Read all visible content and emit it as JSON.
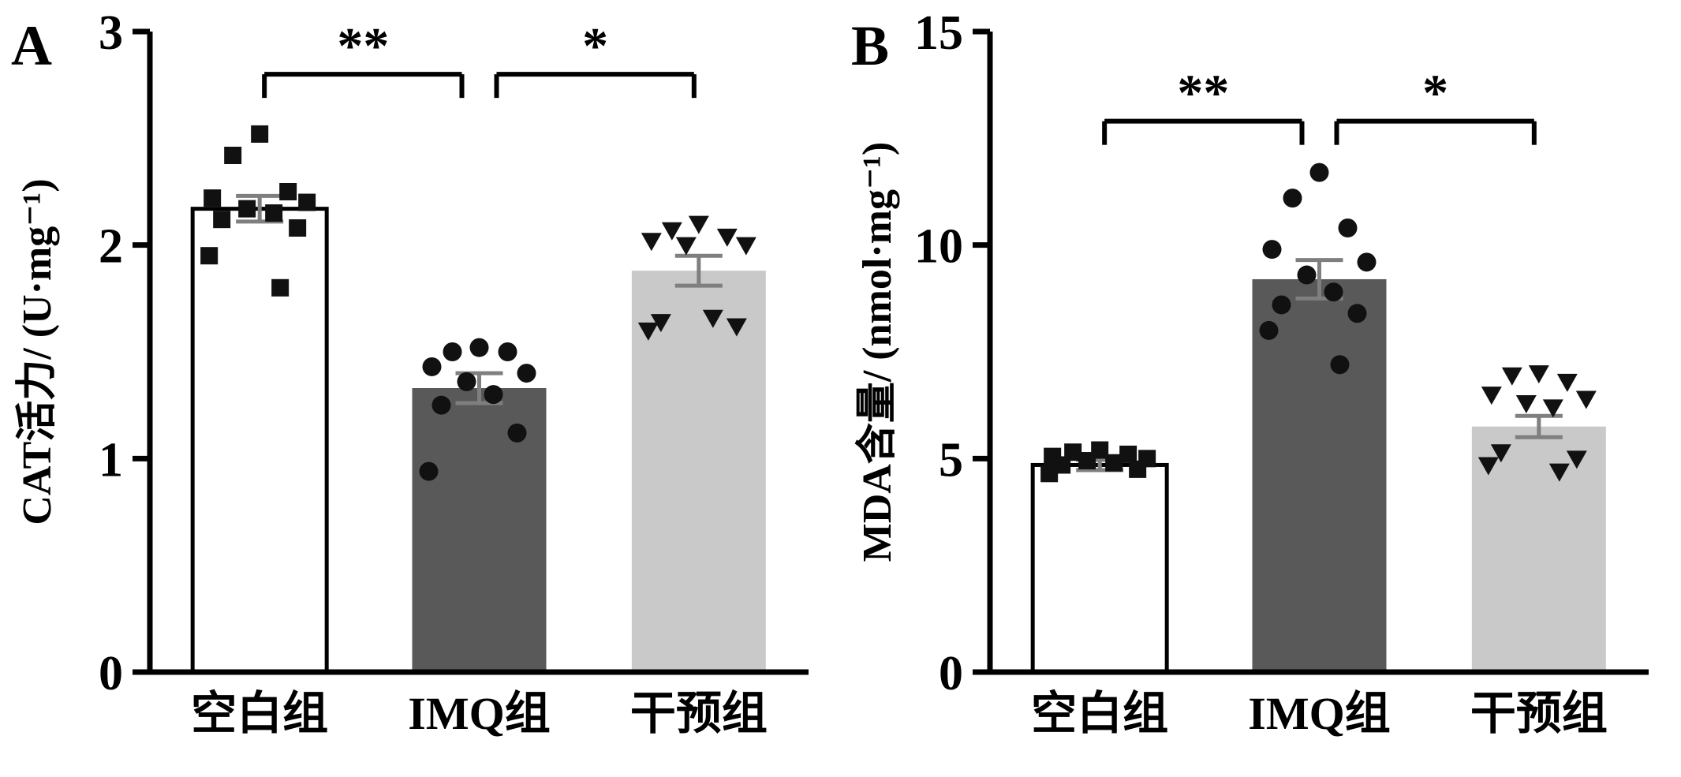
{
  "figure": {
    "background": "#ffffff",
    "description": "Two-panel bar chart figure with scatter overlay and significance brackets"
  },
  "chart_data": [
    {
      "type": "bar",
      "panel_label": "A",
      "title": "",
      "xlabel": "",
      "ylabel": "CAT活力/ (U·mg⁻¹)",
      "categories": [
        "空白组",
        "IMQ组",
        "干预组"
      ],
      "ylim": [
        0,
        3
      ],
      "yticks": [
        0,
        1,
        2,
        3
      ],
      "grid": false,
      "legend": "none",
      "bar_values": [
        2.17,
        1.33,
        1.88
      ],
      "bar_errors": [
        0.06,
        0.07,
        0.07
      ],
      "bar_colors": [
        "#ffffff",
        "#595959",
        "#c9c9c9"
      ],
      "bar_outlines": [
        "#000000",
        "none",
        "none"
      ],
      "error_color": "#7f7f7f",
      "point_color": "#111111",
      "point_shapes": [
        "square",
        "circle",
        "triangle-down"
      ],
      "points": [
        [
          2.52,
          2.42,
          2.25,
          2.22,
          2.2,
          2.17,
          2.15,
          2.12,
          2.08,
          1.95,
          1.8
        ],
        [
          1.52,
          1.5,
          1.5,
          1.43,
          1.4,
          1.36,
          1.3,
          1.25,
          1.12,
          0.94
        ],
        [
          2.1,
          2.07,
          2.04,
          2.02,
          2.0,
          2.0,
          1.66,
          1.64,
          1.62,
          1.6
        ]
      ],
      "significance": [
        {
          "from": 0,
          "to": 1,
          "label": "**",
          "y": 2.8
        },
        {
          "from": 1,
          "to": 2,
          "label": "*",
          "y": 2.8
        }
      ]
    },
    {
      "type": "bar",
      "panel_label": "B",
      "title": "",
      "xlabel": "",
      "ylabel": "MDA含量/ (nmol·mg⁻¹)",
      "categories": [
        "空白组",
        "IMQ组",
        "干预组"
      ],
      "ylim": [
        0,
        15
      ],
      "yticks": [
        0,
        5,
        10,
        15
      ],
      "grid": false,
      "legend": "none",
      "bar_values": [
        4.85,
        9.2,
        5.75
      ],
      "bar_errors": [
        0.12,
        0.45,
        0.25
      ],
      "bar_colors": [
        "#ffffff",
        "#595959",
        "#c9c9c9"
      ],
      "bar_outlines": [
        "#000000",
        "none",
        "none"
      ],
      "error_color": "#7f7f7f",
      "point_color": "#111111",
      "point_shapes": [
        "square",
        "circle",
        "triangle-down"
      ],
      "points": [
        [
          5.2,
          5.15,
          5.1,
          5.05,
          5.0,
          4.95,
          4.9,
          4.85,
          4.75,
          4.65
        ],
        [
          11.7,
          11.1,
          10.4,
          9.9,
          9.6,
          9.3,
          8.9,
          8.6,
          8.4,
          8.0,
          7.2
        ],
        [
          7.0,
          6.95,
          6.8,
          6.5,
          6.4,
          6.3,
          6.2,
          5.15,
          5.0,
          4.85,
          4.7
        ]
      ],
      "significance": [
        {
          "from": 0,
          "to": 1,
          "label": "**",
          "y": 12.9
        },
        {
          "from": 1,
          "to": 2,
          "label": "*",
          "y": 12.9
        }
      ]
    }
  ]
}
